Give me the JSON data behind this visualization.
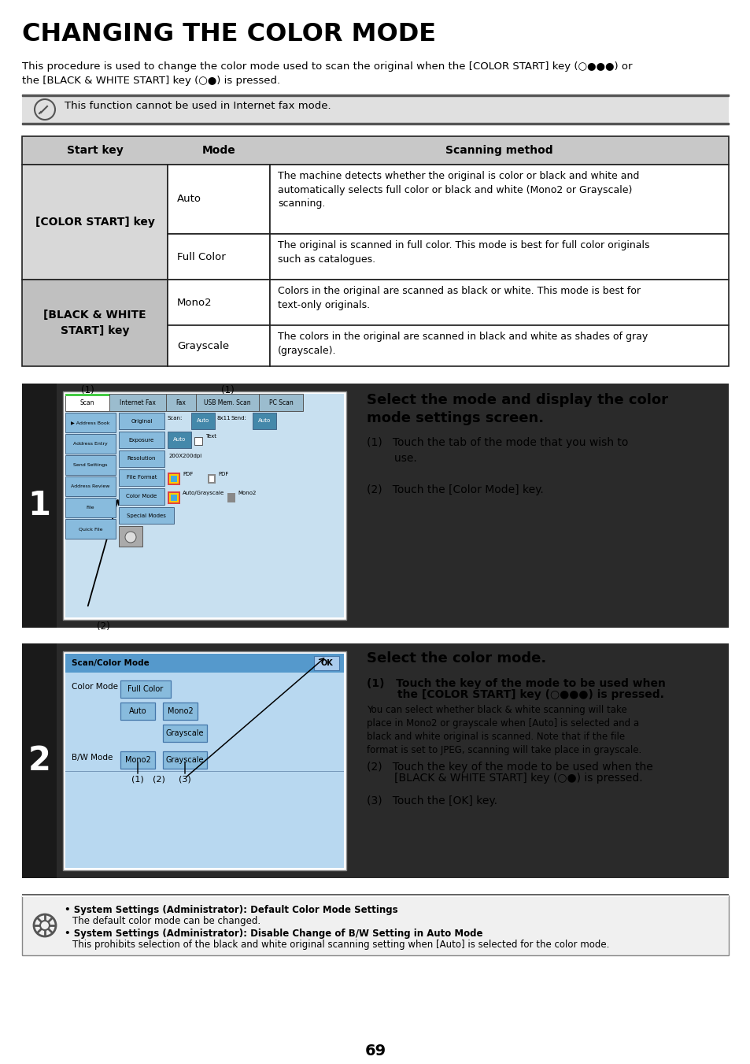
{
  "title": "CHANGING THE COLOR MODE",
  "intro1": "This procedure is used to change the color mode used to scan the original when the [COLOR START] key (○●●●) or",
  "intro2": "the [BLACK & WHITE START] key (○●) is pressed.",
  "note_text": "This function cannot be used in Internet fax mode.",
  "tbl_headers": [
    "Start key",
    "Mode",
    "Scanning method"
  ],
  "tbl_left1": "[COLOR START] key",
  "tbl_left2": "[BLACK & WHITE\nSTART] key",
  "tbl_modes": [
    "Auto",
    "Full Color",
    "Mono2",
    "Grayscale"
  ],
  "tbl_descs": [
    "The machine detects whether the original is color or black and white and\nautomatically selects full color or black and white (Mono2 or Grayscale)\nscanning.",
    "The original is scanned in full color. This mode is best for full color originals\nsuch as catalogues.",
    "Colors in the original are scanned as black or white. This mode is best for\ntext-only originals.",
    "The colors in the original are scanned in black and white as shades of gray\n(grayscale)."
  ],
  "step1_title": "Select the mode and display the color\nmode settings screen.",
  "step1_1": "(1)   Touch the tab of the mode that you wish to\n        use.",
  "step1_2": "(2)   Touch the [Color Mode] key.",
  "step2_title": "Select the color mode.",
  "step2_1a": "(1)   Touch the key of the mode to be used when",
  "step2_1b": "        the [COLOR START] key (○●●●) is pressed.",
  "step2_1c": "You can select whether black & white scanning will take\nplace in Mono2 or grayscale when [Auto] is selected and a\nblack and white original is scanned. Note that if the file\nformat is set to JPEG, scanning will take place in grayscale.",
  "step2_2a": "(2)   Touch the key of the mode to be used when the",
  "step2_2b": "        [BLACK & WHITE START] key (○●) is pressed.",
  "step2_3": "(3)   Touch the [OK] key.",
  "ftr_b1": "System Settings (Administrator): Default Color Mode Settings",
  "ftr_n1": "The default color mode can be changed.",
  "ftr_b2": "System Settings (Administrator): Disable Change of B/W Setting in Auto Mode",
  "ftr_n2": "This prohibits selection of the black and white original scanning setting when [Auto] is selected for the color mode.",
  "page_num": "69",
  "bg": "#ffffff",
  "hdr_bg": "#c8c8c8",
  "left_bg1": "#d8d8d8",
  "left_bg2": "#c0c0c0",
  "note_bg": "#e0e0e0",
  "step_dark": "#2a2a2a",
  "screen_bg": "#c8e0f0",
  "btn_light": "#88bbdd",
  "btn_dark": "#4488aa",
  "scan2_bg": "#b8d8f0"
}
